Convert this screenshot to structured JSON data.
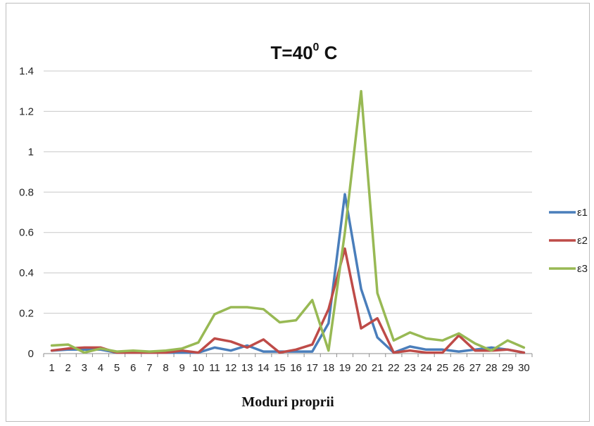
{
  "chart_data": {
    "type": "line",
    "title": "T=40",
    "title_superscript": "0",
    "title_suffix": " C",
    "xlabel": "Moduri proprii",
    "ylabel": "",
    "ylim": [
      0,
      1.4
    ],
    "yticks": [
      "0",
      "0.2",
      "0.4",
      "0.6",
      "0.8",
      "1",
      "1.2",
      "1.4"
    ],
    "ytick_values": [
      0,
      0.2,
      0.4,
      0.6,
      0.8,
      1.0,
      1.2,
      1.4
    ],
    "x": [
      1,
      2,
      3,
      4,
      5,
      6,
      7,
      8,
      9,
      10,
      11,
      12,
      13,
      14,
      15,
      16,
      17,
      18,
      19,
      20,
      21,
      22,
      23,
      24,
      25,
      26,
      27,
      28,
      29,
      30
    ],
    "grid": "horizontal",
    "legend_position": "right",
    "series": [
      {
        "name": "ε1",
        "color": "#4a7ebb",
        "values": [
          0.015,
          0.02,
          0.02,
          0.02,
          0.005,
          0.005,
          0.005,
          0.005,
          0.005,
          0.005,
          0.03,
          0.015,
          0.04,
          0.01,
          0.01,
          0.01,
          0.01,
          0.15,
          0.79,
          0.32,
          0.08,
          0.005,
          0.035,
          0.02,
          0.02,
          0.01,
          0.02,
          0.03,
          0.02,
          0.005
        ]
      },
      {
        "name": "ε2",
        "color": "#be4b48",
        "values": [
          0.015,
          0.025,
          0.03,
          0.03,
          0.005,
          0.005,
          0.005,
          0.005,
          0.015,
          0.005,
          0.075,
          0.06,
          0.03,
          0.07,
          0.005,
          0.02,
          0.045,
          0.22,
          0.52,
          0.125,
          0.175,
          0.005,
          0.015,
          0.005,
          0.005,
          0.09,
          0.015,
          0.015,
          0.02,
          0.005
        ]
      },
      {
        "name": "ε3",
        "color": "#98b954",
        "values": [
          0.04,
          0.045,
          0.005,
          0.025,
          0.01,
          0.015,
          0.01,
          0.015,
          0.025,
          0.055,
          0.195,
          0.23,
          0.23,
          0.22,
          0.155,
          0.165,
          0.265,
          0.015,
          0.6,
          1.3,
          0.3,
          0.065,
          0.105,
          0.075,
          0.065,
          0.1,
          0.05,
          0.015,
          0.065,
          0.03
        ]
      }
    ]
  }
}
